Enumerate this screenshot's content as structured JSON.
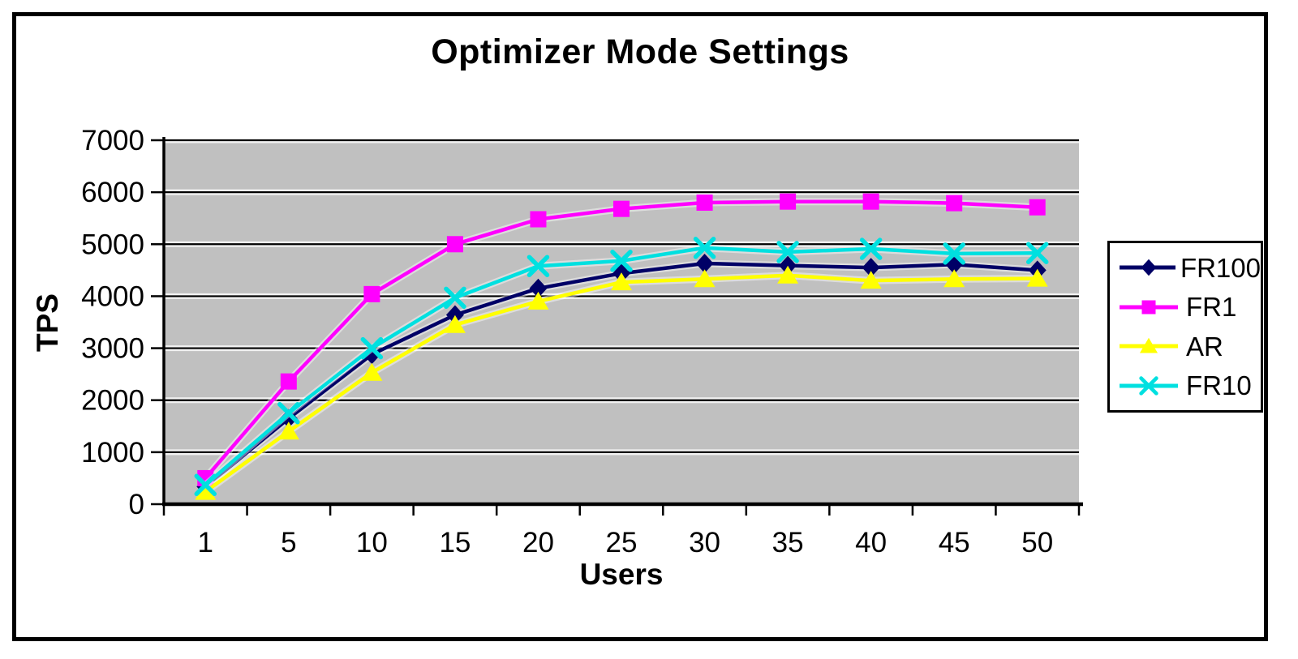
{
  "chart_data": {
    "type": "line",
    "title": "Optimizer Mode Settings",
    "xlabel": "Users",
    "ylabel": "TPS",
    "categories": [
      "1",
      "5",
      "10",
      "15",
      "20",
      "25",
      "30",
      "35",
      "40",
      "45",
      "50"
    ],
    "ylim": [
      0,
      7000
    ],
    "ytick_step": 1000,
    "yticks": [
      0,
      1000,
      2000,
      3000,
      4000,
      5000,
      6000,
      7000
    ],
    "grid": "horizontal",
    "plot_bg": "#c0c0c0",
    "grid_color": "#000000",
    "legend_position": "right",
    "series": [
      {
        "name": "FR100",
        "marker": "diamond",
        "color": "#000066",
        "values": [
          340,
          1650,
          2880,
          3640,
          4150,
          4440,
          4630,
          4590,
          4550,
          4610,
          4500
        ]
      },
      {
        "name": "FR1",
        "marker": "square",
        "color": "#ff00ff",
        "values": [
          500,
          2360,
          4040,
          5000,
          5480,
          5680,
          5800,
          5820,
          5820,
          5790,
          5710
        ]
      },
      {
        "name": "AR",
        "marker": "triangle",
        "color": "#ffff00",
        "values": [
          240,
          1400,
          2530,
          3450,
          3900,
          4270,
          4330,
          4400,
          4300,
          4330,
          4340
        ]
      },
      {
        "name": "FR10",
        "marker": "x",
        "color": "#00e0e0",
        "values": [
          370,
          1750,
          3000,
          3970,
          4580,
          4680,
          4930,
          4850,
          4910,
          4820,
          4830
        ]
      }
    ]
  }
}
